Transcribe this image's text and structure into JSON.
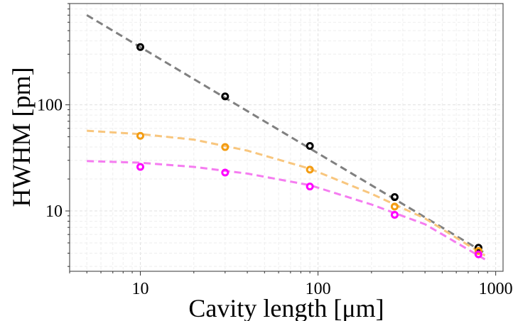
{
  "chart_data": {
    "type": "scatter",
    "title": "",
    "xlabel": "Cavity length [μm]",
    "ylabel": "HWHM [pm]",
    "xscale": "log",
    "yscale": "log",
    "xlim": [
      4,
      1100
    ],
    "ylim": [
      2.7,
      900
    ],
    "x_ticks": [
      10,
      100,
      1000
    ],
    "x_tick_labels": [
      "10",
      "100",
      "1000"
    ],
    "y_ticks": [
      10,
      100
    ],
    "y_tick_labels": [
      "10",
      "100"
    ],
    "grid": true,
    "legend": "none",
    "series": [
      {
        "color": "#000000",
        "fit_color": "#808080",
        "points": [
          [
            10,
            350
          ],
          [
            30,
            120
          ],
          [
            90,
            41
          ],
          [
            270,
            13.5
          ],
          [
            800,
            4.5
          ]
        ],
        "fit": [
          [
            5,
            700
          ],
          [
            850,
            4.1
          ]
        ]
      },
      {
        "color": "#f39c12",
        "fit_color": "#f8c67e",
        "points": [
          [
            10,
            51
          ],
          [
            30,
            40
          ],
          [
            90,
            24.5
          ],
          [
            270,
            11
          ],
          [
            800,
            4.2
          ]
        ],
        "fit": [
          [
            5,
            57
          ],
          [
            10,
            53
          ],
          [
            20,
            47
          ],
          [
            40,
            37
          ],
          [
            90,
            25
          ],
          [
            200,
            14.5
          ],
          [
            400,
            8.5
          ],
          [
            870,
            3.8
          ]
        ]
      },
      {
        "color": "#ff00ff",
        "fit_color": "#f57cf0",
        "points": [
          [
            10,
            26
          ],
          [
            30,
            23
          ],
          [
            90,
            17
          ],
          [
            270,
            9.2
          ],
          [
            800,
            3.9
          ]
        ],
        "fit": [
          [
            5,
            29.5
          ],
          [
            10,
            28.5
          ],
          [
            20,
            26
          ],
          [
            40,
            22.5
          ],
          [
            90,
            17.5
          ],
          [
            200,
            11.5
          ],
          [
            400,
            7.5
          ],
          [
            870,
            3.5
          ]
        ]
      }
    ]
  }
}
